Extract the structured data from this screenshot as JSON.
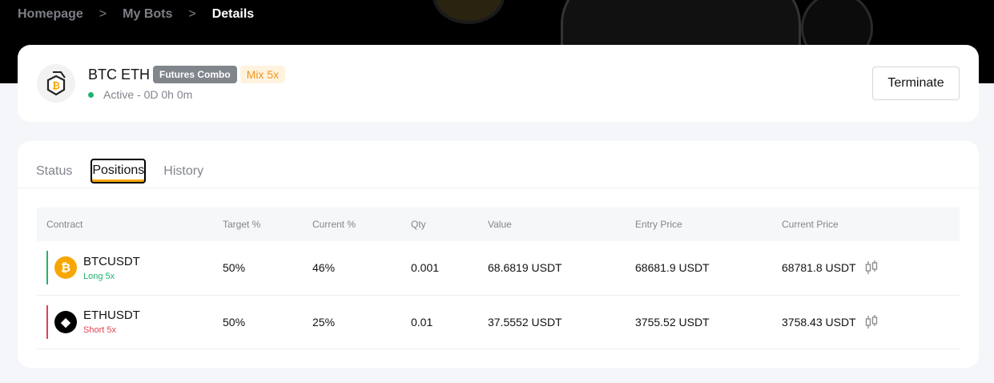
{
  "breadcrumb": [
    "Homepage",
    "My Bots",
    "Details"
  ],
  "bot": {
    "name": "BTC ETH",
    "tags": [
      "Futures Combo",
      "Mix 5x"
    ],
    "status": "Active - 0D 0h 0m",
    "terminate_label": "Terminate",
    "status_color": "#20b26c"
  },
  "tabs": [
    "Status",
    "Positions",
    "History"
  ],
  "active_tab": "Positions",
  "table": {
    "headers": [
      "Contract",
      "Target %",
      "Current %",
      "Qty",
      "Value",
      "Entry Price",
      "Current Price"
    ],
    "rows": [
      {
        "symbol": "BTCUSDT",
        "side": "Long 5x",
        "icon": "bitcoin-icon",
        "target": "50%",
        "current": "46%",
        "qty": "0.001",
        "value": "68.6819 USDT",
        "entry": "68681.9 USDT",
        "current_price": "68781.8 USDT"
      },
      {
        "symbol": "ETHUSDT",
        "side": "Short 5x",
        "icon": "ethereum-icon",
        "target": "50%",
        "current": "25%",
        "qty": "0.01",
        "value": "37.5552 USDT",
        "entry": "3755.52 USDT",
        "current_price": "3758.43 USDT"
      }
    ]
  },
  "colors": {
    "long": "#20b26c",
    "short": "#e04050",
    "accent": "#f7a600"
  }
}
